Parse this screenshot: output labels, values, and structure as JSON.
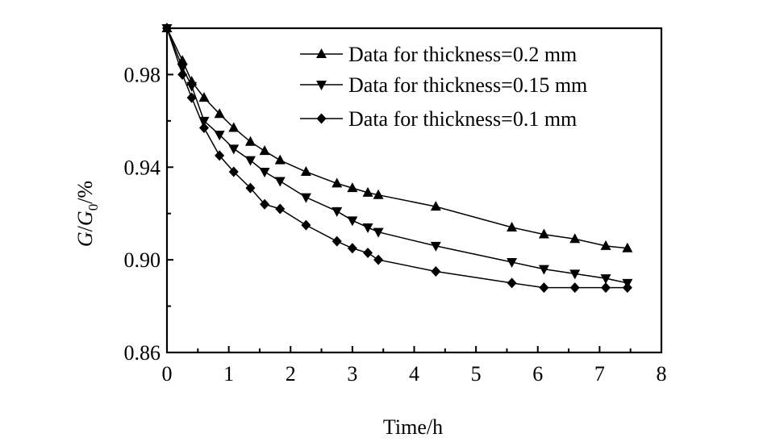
{
  "chart_data": {
    "type": "line",
    "xlabel": "Time/h",
    "ylabel": "G/G₀/%",
    "xlim": [
      0,
      8
    ],
    "ylim": [
      0.86,
      1.0
    ],
    "x_ticks": [
      0,
      1,
      2,
      3,
      4,
      5,
      6,
      7,
      8
    ],
    "y_ticks": [
      0.86,
      0.9,
      0.94,
      0.98
    ],
    "y_tick_labels": [
      "0.86",
      "0.90",
      "0.94",
      "0.98"
    ],
    "grid": false,
    "legend_position": "top-right",
    "series": [
      {
        "name": "Data for thickness=0.2 mm",
        "marker": "triangle-up",
        "x": [
          0,
          0.25,
          0.4,
          0.6,
          0.85,
          1.08,
          1.35,
          1.58,
          1.83,
          2.25,
          2.75,
          3.0,
          3.25,
          3.42,
          4.35,
          5.58,
          6.1,
          6.6,
          7.1,
          7.45
        ],
        "y": [
          1.0,
          0.986,
          0.977,
          0.97,
          0.963,
          0.957,
          0.951,
          0.947,
          0.943,
          0.938,
          0.933,
          0.931,
          0.929,
          0.928,
          0.923,
          0.914,
          0.911,
          0.909,
          0.906,
          0.905
        ]
      },
      {
        "name": "Data for thickness=0.15 mm",
        "marker": "triangle-down",
        "x": [
          0,
          0.25,
          0.4,
          0.6,
          0.85,
          1.08,
          1.35,
          1.58,
          1.83,
          2.25,
          2.75,
          3.0,
          3.25,
          3.42,
          4.35,
          5.58,
          6.1,
          6.6,
          7.1,
          7.45
        ],
        "y": [
          1.0,
          0.983,
          0.975,
          0.96,
          0.954,
          0.948,
          0.943,
          0.938,
          0.934,
          0.927,
          0.921,
          0.917,
          0.914,
          0.912,
          0.906,
          0.899,
          0.896,
          0.894,
          0.892,
          0.89
        ]
      },
      {
        "name": "Data for thickness=0.1 mm",
        "marker": "diamond",
        "x": [
          0,
          0.25,
          0.4,
          0.6,
          0.85,
          1.08,
          1.35,
          1.58,
          1.83,
          2.25,
          2.75,
          3.0,
          3.25,
          3.42,
          4.35,
          5.58,
          6.1,
          6.6,
          7.1,
          7.45
        ],
        "y": [
          1.0,
          0.98,
          0.97,
          0.957,
          0.945,
          0.938,
          0.931,
          0.924,
          0.922,
          0.915,
          0.908,
          0.905,
          0.903,
          0.9,
          0.895,
          0.89,
          0.888,
          0.888,
          0.888,
          0.888
        ]
      }
    ]
  }
}
